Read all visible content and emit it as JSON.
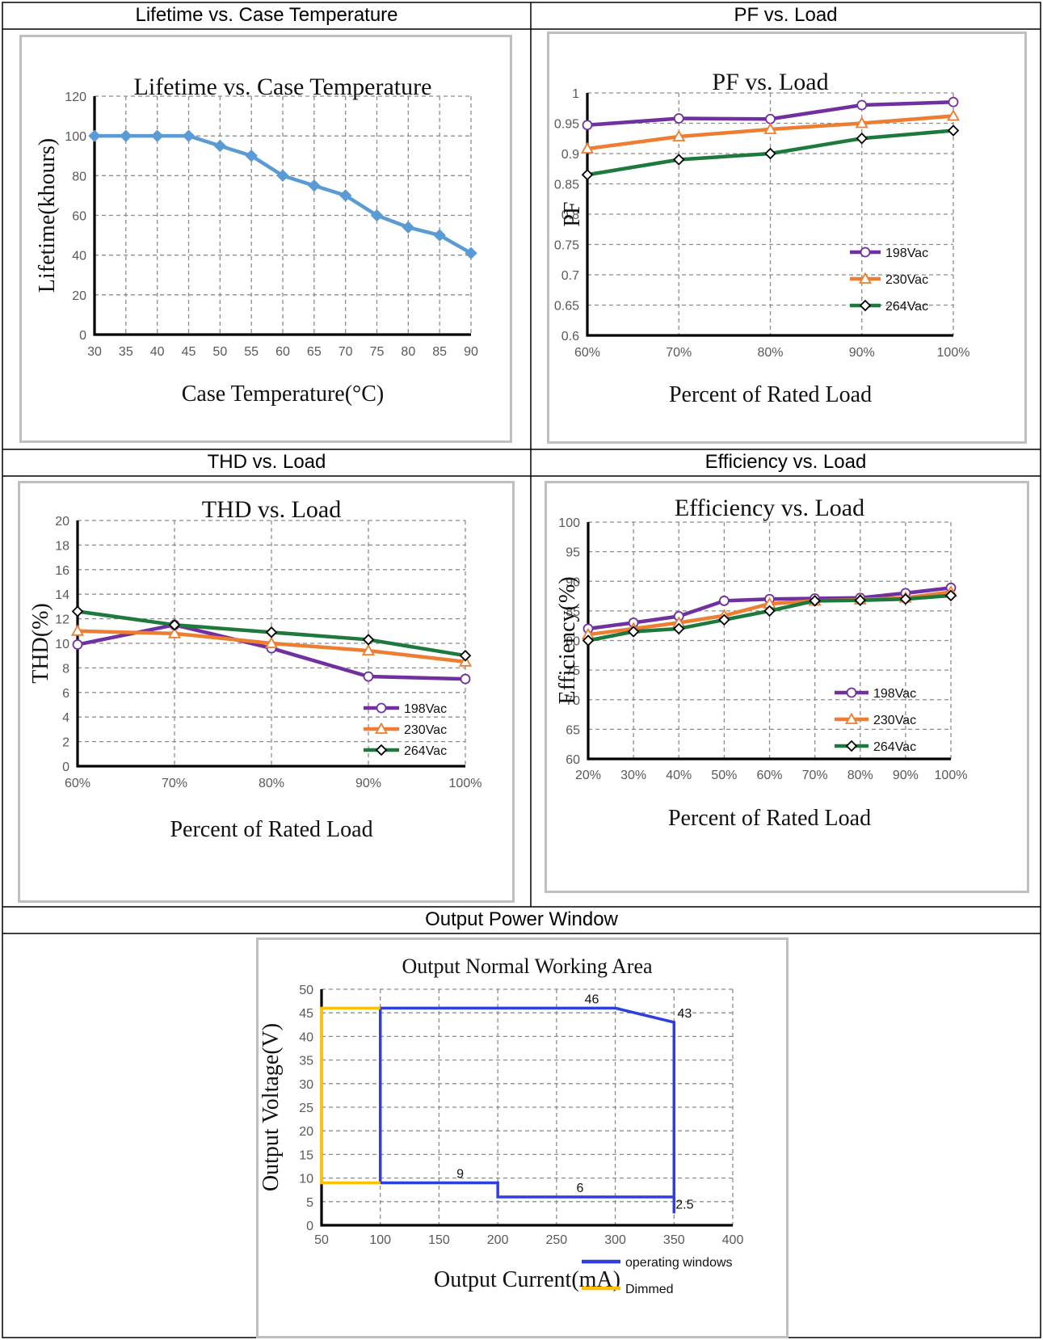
{
  "headers": {
    "lifetime": "Lifetime vs. Case Temperature",
    "pf": "PF vs. Load",
    "thd": "THD vs. Load",
    "efficiency": "Efficiency vs. Load",
    "output": "Output Power Window"
  },
  "chart_data": [
    {
      "id": "lifetime",
      "type": "line",
      "title": "Lifetime vs. Case Temperature",
      "xlabel": "Case Temperature(°C)",
      "ylabel": "Lifetime(khours)",
      "x": [
        30,
        35,
        40,
        45,
        50,
        55,
        60,
        65,
        70,
        75,
        80,
        85,
        90
      ],
      "xticks": [
        "30",
        "35",
        "40",
        "45",
        "50",
        "55",
        "60",
        "65",
        "70",
        "75",
        "80",
        "85",
        "90"
      ],
      "yticks": [
        "0",
        "20",
        "40",
        "60",
        "80",
        "100",
        "120"
      ],
      "xlim": [
        30,
        90
      ],
      "ylim": [
        0,
        120
      ],
      "grid": true,
      "series": [
        {
          "values": [
            100,
            100,
            100,
            100,
            95,
            90,
            80,
            75,
            70,
            60,
            54,
            50,
            41
          ],
          "color": "#5b9bd5",
          "marker": "diamond"
        }
      ]
    },
    {
      "id": "pf",
      "type": "line",
      "title": "PF vs. Load",
      "xlabel": "Percent of Rated Load",
      "ylabel": "PF",
      "x": [
        60,
        70,
        80,
        90,
        100
      ],
      "xticks": [
        "60%",
        "70%",
        "80%",
        "90%",
        "100%"
      ],
      "yticks": [
        "0.6",
        "0.65",
        "0.7",
        "0.75",
        "0.8",
        "0.85",
        "0.9",
        "0.95",
        "1"
      ],
      "xlim": [
        60,
        100
      ],
      "ylim": [
        0.6,
        1
      ],
      "grid": true,
      "legend": "bottom-right",
      "series": [
        {
          "name": "198Vac",
          "values": [
            0.947,
            0.958,
            0.957,
            0.98,
            0.985
          ],
          "color": "#7030a0",
          "marker": "circle"
        },
        {
          "name": "230Vac",
          "values": [
            0.908,
            0.928,
            0.94,
            0.95,
            0.962
          ],
          "color": "#ed7d31",
          "marker": "triangle"
        },
        {
          "name": "264Vac",
          "values": [
            0.865,
            0.89,
            0.9,
            0.925,
            0.938
          ],
          "color": "#1e7a3c",
          "marker": "diamond"
        }
      ]
    },
    {
      "id": "thd",
      "type": "line",
      "title": "THD vs. Load",
      "xlabel": "Percent of Rated Load",
      "ylabel": "THD(%)",
      "x": [
        60,
        70,
        80,
        90,
        100
      ],
      "xticks": [
        "60%",
        "70%",
        "80%",
        "90%",
        "100%"
      ],
      "yticks": [
        "0",
        "2",
        "4",
        "6",
        "8",
        "10",
        "12",
        "14",
        "16",
        "18",
        "20"
      ],
      "xlim": [
        60,
        100
      ],
      "ylim": [
        0,
        20
      ],
      "grid": true,
      "legend": "bottom-right",
      "series": [
        {
          "name": "198Vac",
          "values": [
            9.9,
            11.5,
            9.6,
            7.3,
            7.1
          ],
          "color": "#7030a0",
          "marker": "circle"
        },
        {
          "name": "230Vac",
          "values": [
            11.0,
            10.8,
            10.0,
            9.4,
            8.5
          ],
          "color": "#ed7d31",
          "marker": "triangle"
        },
        {
          "name": "264Vac",
          "values": [
            12.6,
            11.5,
            10.9,
            10.3,
            9.0
          ],
          "color": "#1e7a3c",
          "marker": "diamond"
        }
      ]
    },
    {
      "id": "efficiency",
      "type": "line",
      "title": "Efficiency vs. Load",
      "xlabel": "Percent of Rated Load",
      "ylabel": "Efficiency(%)",
      "x": [
        20,
        30,
        40,
        50,
        60,
        70,
        80,
        90,
        100
      ],
      "xticks": [
        "20%",
        "30%",
        "40%",
        "50%",
        "60%",
        "70%",
        "80%",
        "90%",
        "100%"
      ],
      "yticks": [
        "60",
        "65",
        "70",
        "75",
        "80",
        "85",
        "90",
        "95",
        "100"
      ],
      "xlim": [
        20,
        100
      ],
      "ylim": [
        60,
        100
      ],
      "grid": true,
      "legend": "bottom-right",
      "series": [
        {
          "name": "198Vac",
          "values": [
            82.0,
            83.0,
            84.1,
            86.7,
            87.0,
            87.1,
            87.2,
            88.0,
            88.9
          ],
          "color": "#7030a0",
          "marker": "circle"
        },
        {
          "name": "230Vac",
          "values": [
            81.0,
            82.0,
            83.0,
            84.2,
            86.2,
            86.7,
            86.9,
            87.2,
            88.2
          ],
          "color": "#ed7d31",
          "marker": "triangle"
        },
        {
          "name": "264Vac",
          "values": [
            80.0,
            81.5,
            82.0,
            83.5,
            85.0,
            86.7,
            86.8,
            87.0,
            87.6
          ],
          "color": "#1e7a3c",
          "marker": "diamond"
        }
      ]
    },
    {
      "id": "output",
      "type": "line",
      "title": "Output Normal Working Area",
      "xlabel": "Output Current(mA)",
      "ylabel": "Output Voltage(V)",
      "xticks": [
        "50",
        "100",
        "150",
        "200",
        "250",
        "300",
        "350",
        "400"
      ],
      "yticks": [
        "0",
        "5",
        "10",
        "15",
        "20",
        "25",
        "30",
        "35",
        "40",
        "45",
        "50"
      ],
      "xlim": [
        50,
        400
      ],
      "ylim": [
        0,
        50
      ],
      "grid": true,
      "legend": "bottom-right",
      "series": [
        {
          "name": "operating windows",
          "color": "#2e3fe0",
          "points": [
            [
              100,
              9
            ],
            [
              100,
              46
            ],
            [
              300,
              46
            ],
            [
              350,
              43
            ],
            [
              350,
              2.5
            ],
            [
              350,
              6
            ],
            [
              200,
              6
            ],
            [
              200,
              9
            ],
            [
              100,
              9
            ]
          ]
        },
        {
          "name": "Dimmed",
          "color": "#ffc000",
          "points": [
            [
              100,
              46
            ],
            [
              50,
              46
            ],
            [
              50,
              9
            ],
            [
              100,
              9
            ]
          ]
        }
      ],
      "annotations": [
        {
          "text": "46",
          "x": 280,
          "y": 46
        },
        {
          "text": "43",
          "x": 359,
          "y": 43
        },
        {
          "text": "9",
          "x": 168,
          "y": 9
        },
        {
          "text": "6",
          "x": 270,
          "y": 6
        },
        {
          "text": "2.5",
          "x": 359,
          "y": 2.5
        }
      ]
    }
  ]
}
